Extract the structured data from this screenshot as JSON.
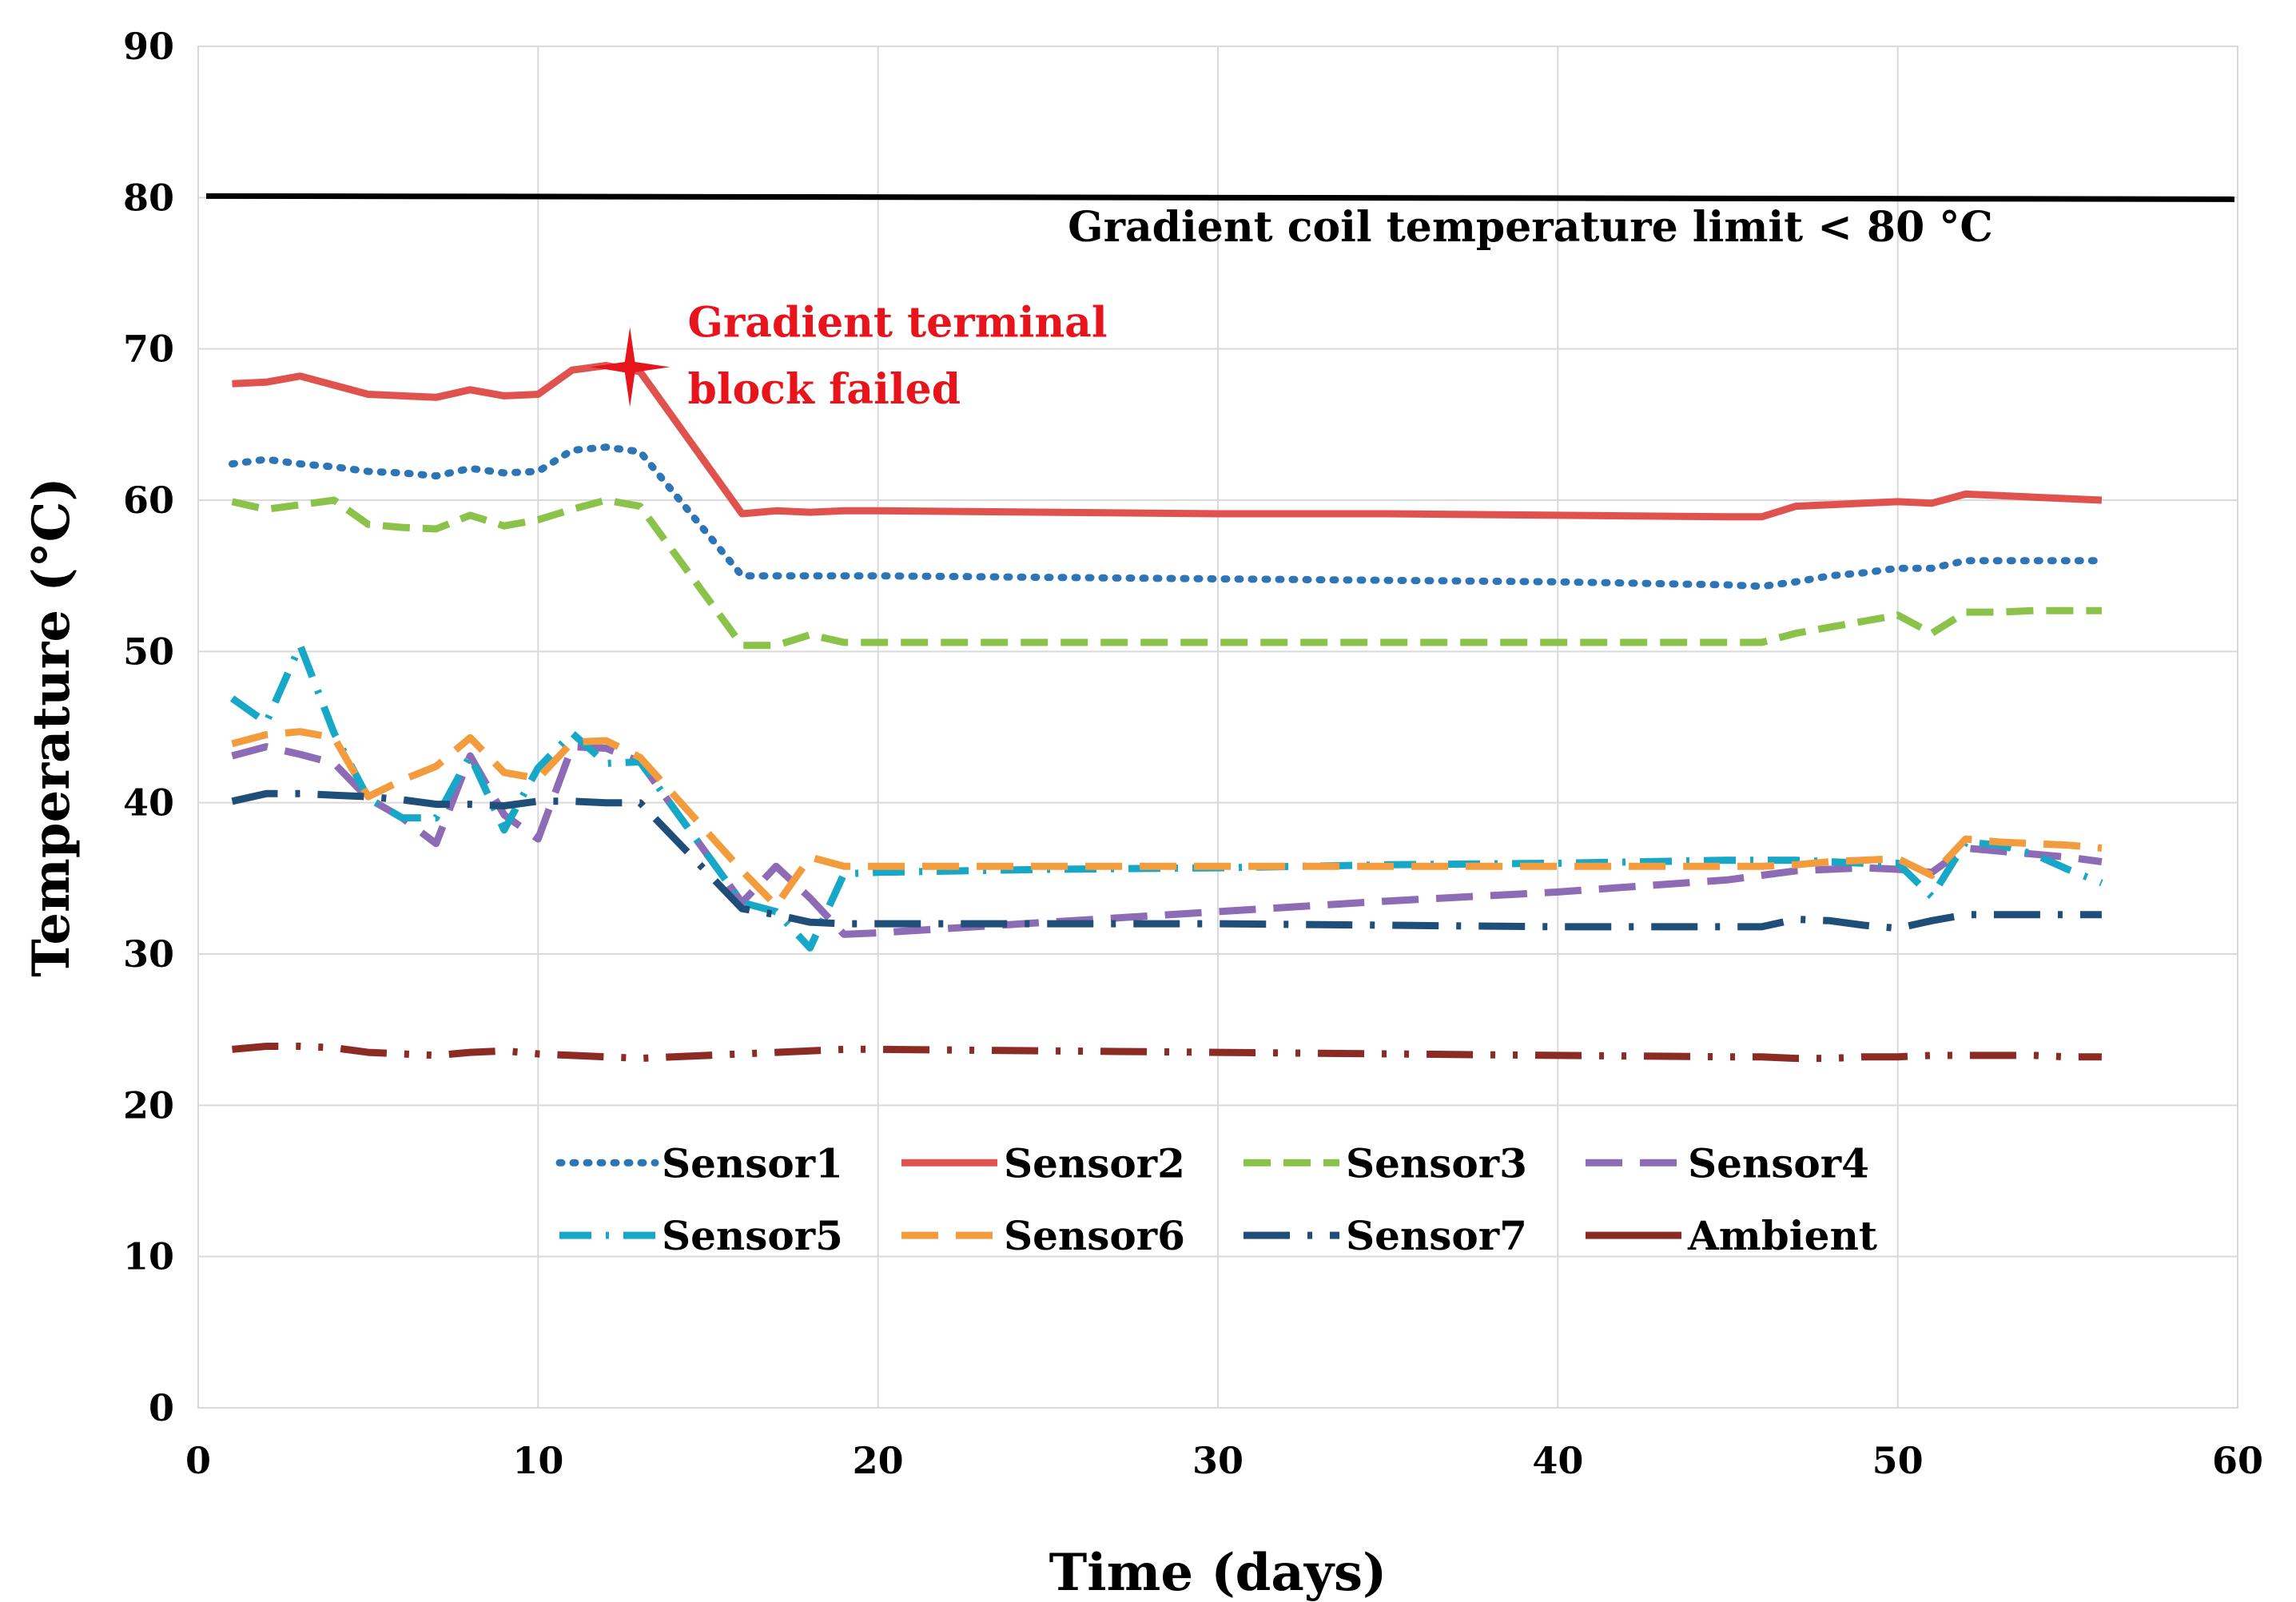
{
  "chart_data": {
    "type": "line",
    "title": "",
    "xlabel": "Time (days)",
    "ylabel": "Temperature (°C)",
    "xlim": [
      0,
      60
    ],
    "ylim": [
      0,
      90
    ],
    "xticks": [
      "0",
      "10",
      "20",
      "30",
      "40",
      "50",
      "60"
    ],
    "yticks": [
      "0",
      "10",
      "20",
      "30",
      "40",
      "50",
      "60",
      "70",
      "80",
      "90"
    ],
    "grid": true,
    "legend_position": "lower-center",
    "limit_line": {
      "value": 80,
      "label": "Gradient coil temperature limit < 80 °C",
      "color": "#000000"
    },
    "failure_marker": {
      "x": 12.7,
      "y": 68.8,
      "label_line1": "Gradient terminal",
      "label_line2": "block failed",
      "color": "#e8141c"
    },
    "series": [
      {
        "name": "Sensor1",
        "color": "#2e75b6",
        "dash": "dot",
        "x": [
          1,
          2,
          3,
          4,
          5,
          6,
          7,
          8,
          9,
          10,
          11,
          12,
          13,
          16,
          19,
          20,
          25,
          30,
          35,
          40,
          45,
          46,
          47,
          48,
          49,
          50,
          51,
          52,
          53,
          54,
          55,
          56
        ],
        "y": [
          62.4,
          62.7,
          62.4,
          62.2,
          61.9,
          61.8,
          61.6,
          62.1,
          61.8,
          61.9,
          63.3,
          63.5,
          63.2,
          55.0,
          55.0,
          55.0,
          54.9,
          54.8,
          54.7,
          54.6,
          54.4,
          54.3,
          54.6,
          55.0,
          55.2,
          55.5,
          55.5,
          56.0,
          56.0,
          56.0,
          56.0,
          56.0
        ]
      },
      {
        "name": "Sensor2",
        "color": "#e0524e",
        "dash": "solid",
        "x": [
          1,
          2,
          3,
          4,
          5,
          6,
          7,
          8,
          9,
          10,
          11,
          12,
          13,
          16,
          17,
          18,
          19,
          20,
          25,
          30,
          35,
          40,
          45,
          46,
          47,
          48,
          49,
          50,
          51,
          52,
          53,
          54,
          55,
          56
        ],
        "y": [
          67.7,
          67.8,
          68.2,
          67.6,
          67.0,
          66.9,
          66.8,
          67.3,
          66.9,
          67.0,
          68.6,
          68.9,
          68.5,
          59.1,
          59.3,
          59.2,
          59.3,
          59.3,
          59.2,
          59.1,
          59.1,
          59.0,
          58.9,
          58.9,
          59.6,
          59.7,
          59.8,
          59.9,
          59.8,
          60.4,
          60.3,
          60.2,
          60.1,
          60.0
        ]
      },
      {
        "name": "Sensor3",
        "color": "#8bc34a",
        "dash": "dash",
        "x": [
          1,
          2,
          3,
          4,
          5,
          6,
          7,
          8,
          9,
          10,
          11,
          12,
          13,
          16,
          17,
          18,
          19,
          20,
          25,
          30,
          35,
          40,
          45,
          46,
          47,
          48,
          49,
          50,
          51,
          52,
          53,
          54,
          55,
          56
        ],
        "y": [
          59.9,
          59.4,
          59.7,
          60.0,
          58.4,
          58.2,
          58.1,
          59.0,
          58.3,
          58.7,
          59.4,
          60.0,
          59.6,
          50.4,
          50.4,
          51.1,
          50.6,
          50.6,
          50.6,
          50.6,
          50.6,
          50.6,
          50.6,
          50.6,
          51.2,
          51.6,
          52.0,
          52.4,
          51.2,
          52.6,
          52.6,
          52.7,
          52.7,
          52.7
        ]
      },
      {
        "name": "Sensor4",
        "color": "#8e6bb5",
        "dash": "longdash",
        "x": [
          1,
          2,
          3,
          4,
          5,
          6,
          7,
          8,
          9,
          10,
          11,
          12,
          13,
          16,
          17,
          18,
          19,
          20,
          25,
          30,
          35,
          40,
          45,
          46,
          47,
          48,
          49,
          50,
          51,
          52,
          53,
          54,
          55,
          56
        ],
        "y": [
          43.1,
          43.7,
          43.2,
          42.6,
          40.3,
          39.0,
          37.3,
          43.1,
          39.2,
          37.6,
          43.7,
          43.6,
          42.7,
          33.4,
          35.8,
          33.7,
          31.3,
          31.4,
          32.1,
          32.8,
          33.5,
          34.1,
          34.9,
          35.2,
          35.5,
          35.6,
          35.7,
          35.6,
          35.4,
          37.0,
          36.8,
          36.6,
          36.4,
          36.1
        ]
      },
      {
        "name": "Sensor5",
        "color": "#17a8c8",
        "dash": "dashdot",
        "x": [
          1,
          2,
          3,
          4,
          5,
          6,
          7,
          8,
          9,
          10,
          11,
          12,
          13,
          16,
          17,
          18,
          19,
          20,
          25,
          30,
          35,
          40,
          45,
          46,
          47,
          48,
          49,
          50,
          51,
          52,
          53,
          54,
          55,
          56
        ],
        "y": [
          46.9,
          45.3,
          50.4,
          44.6,
          40.3,
          39.0,
          39.0,
          43.1,
          38.2,
          42.3,
          44.6,
          42.6,
          42.7,
          33.4,
          32.8,
          30.4,
          35.3,
          35.4,
          35.6,
          35.7,
          35.9,
          36.0,
          36.2,
          36.2,
          36.2,
          36.1,
          36.0,
          36.0,
          33.8,
          37.4,
          37.2,
          36.6,
          35.6,
          34.7
        ]
      },
      {
        "name": "Sensor6",
        "color": "#f39c3d",
        "dash": "longdash",
        "x": [
          1,
          2,
          3,
          4,
          5,
          6,
          7,
          8,
          9,
          10,
          11,
          12,
          13,
          16,
          17,
          18,
          19,
          20,
          25,
          30,
          35,
          40,
          45,
          46,
          47,
          48,
          49,
          50,
          51,
          52,
          53,
          54,
          55,
          56
        ],
        "y": [
          43.9,
          44.5,
          44.7,
          44.3,
          40.4,
          41.5,
          42.4,
          44.3,
          42.0,
          41.6,
          44.0,
          44.1,
          43.0,
          35.5,
          33.2,
          36.4,
          35.8,
          35.8,
          35.8,
          35.8,
          35.8,
          35.8,
          35.8,
          35.8,
          35.9,
          36.1,
          36.2,
          36.3,
          35.2,
          37.6,
          37.4,
          37.3,
          37.2,
          37.0
        ]
      },
      {
        "name": "Sensor7",
        "color": "#1f4e79",
        "dash": "longdashdot",
        "x": [
          1,
          2,
          3,
          4,
          5,
          6,
          7,
          8,
          9,
          10,
          11,
          12,
          13,
          16,
          17,
          18,
          19,
          20,
          25,
          30,
          35,
          40,
          45,
          46,
          47,
          48,
          49,
          50,
          51,
          52,
          53,
          54,
          55,
          56
        ],
        "y": [
          40.1,
          40.6,
          40.6,
          40.5,
          40.4,
          40.2,
          39.9,
          39.9,
          39.8,
          40.1,
          40.1,
          40.0,
          40.0,
          33.0,
          32.6,
          32.1,
          32.0,
          32.0,
          32.0,
          32.0,
          31.9,
          31.8,
          31.8,
          31.8,
          32.3,
          32.2,
          31.9,
          31.7,
          32.2,
          32.6,
          32.6,
          32.6,
          32.6,
          32.6
        ]
      },
      {
        "name": "Ambient",
        "color": "#8b2b24",
        "dash": "longdashdotdot",
        "x": [
          1,
          2,
          3,
          4,
          5,
          6,
          7,
          8,
          9,
          10,
          11,
          12,
          13,
          16,
          17,
          18,
          19,
          20,
          25,
          30,
          35,
          40,
          45,
          46,
          47,
          48,
          49,
          50,
          51,
          52,
          53,
          54,
          55,
          56
        ],
        "y": [
          23.7,
          23.9,
          23.9,
          23.8,
          23.5,
          23.4,
          23.3,
          23.5,
          23.6,
          23.4,
          23.3,
          23.2,
          23.1,
          23.4,
          23.5,
          23.6,
          23.7,
          23.7,
          23.6,
          23.5,
          23.4,
          23.3,
          23.2,
          23.2,
          23.1,
          23.1,
          23.2,
          23.2,
          23.3,
          23.3,
          23.3,
          23.3,
          23.2,
          23.2
        ]
      }
    ]
  }
}
